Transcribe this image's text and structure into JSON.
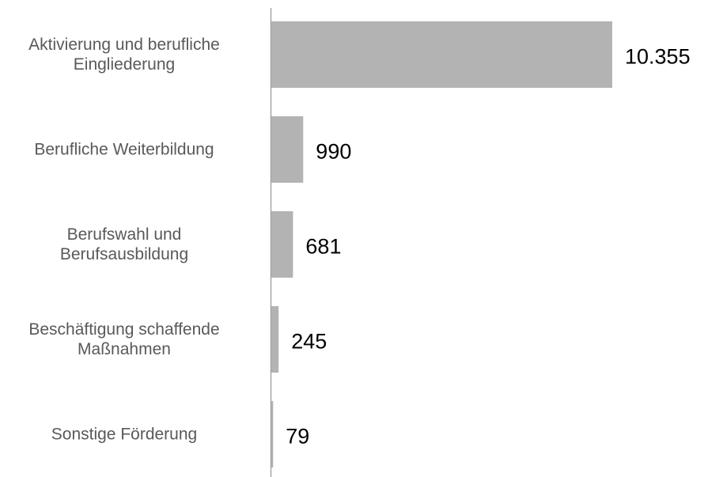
{
  "chart_data": {
    "type": "bar",
    "orientation": "horizontal",
    "categories": [
      "Aktivierung und berufliche\nEingliederung",
      "Berufliche Weiterbildung",
      "Berufswahl und\nBerufsausbildung",
      "Beschäftigung schaffende\nMaßnahmen",
      "Sonstige Förderung"
    ],
    "values": [
      10355,
      990,
      681,
      245,
      79
    ],
    "value_labels": [
      "10.355",
      "990",
      "681",
      "245",
      "79"
    ],
    "color": "#b3b3b3"
  }
}
